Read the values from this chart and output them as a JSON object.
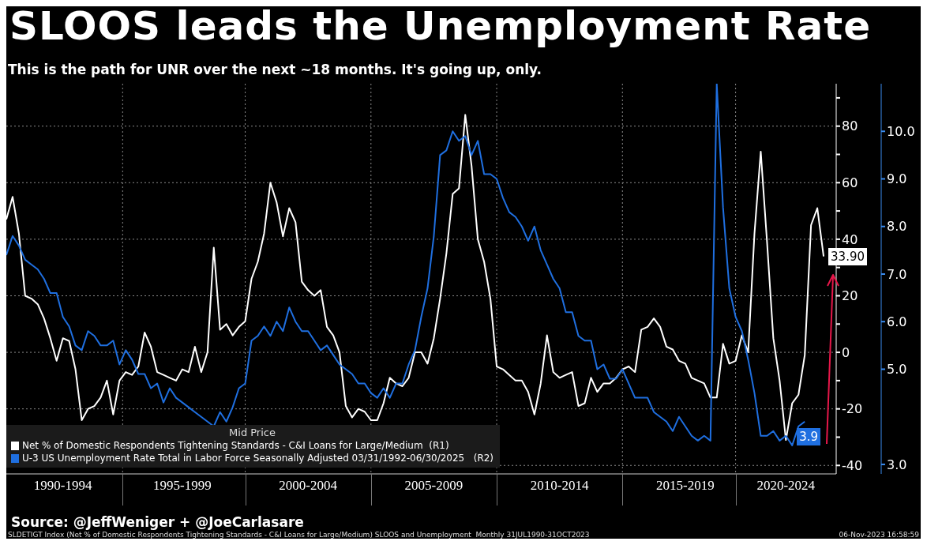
{
  "chart_data": {
    "type": "line",
    "title": "SLOOS leads the Unemployment Rate",
    "subtitle": "This is the path for UNR over the next ~18 months. It's going up, only.",
    "legend_title": "Mid Price",
    "legend": "bottom left",
    "grid": true,
    "categories": [
      null,
      null,
      null,
      null,
      null,
      null,
      null,
      null,
      null,
      "1990-1994",
      null,
      null,
      null,
      null,
      null,
      null,
      null,
      null,
      null,
      null,
      null,
      null,
      null,
      null,
      null,
      null,
      null,
      null,
      "1995-1999",
      null,
      null,
      null,
      null,
      null,
      null,
      null,
      null,
      null,
      null,
      null,
      null,
      null,
      null,
      null,
      null,
      null,
      null,
      null,
      "2000-2004",
      null,
      null,
      null,
      null,
      null,
      null,
      null,
      null,
      null,
      null,
      null,
      null,
      null,
      null,
      null,
      null,
      null,
      null,
      null,
      "2005-2009",
      null,
      null,
      null,
      null,
      null,
      null,
      null,
      null,
      null,
      null,
      null,
      null,
      null,
      null,
      null,
      null,
      null,
      null,
      null,
      "2010-2014",
      null,
      null,
      null,
      null,
      null,
      null,
      null,
      null,
      null,
      null,
      null,
      null,
      null,
      null,
      null,
      null,
      null,
      null,
      null,
      "2015-2019",
      null,
      null,
      null,
      null,
      null,
      null,
      null,
      null,
      null,
      null,
      null,
      null,
      null,
      null,
      null,
      "2020-2024",
      null,
      null,
      null,
      null,
      null,
      null,
      null,
      null
    ],
    "ylim": [
      -43,
      95
    ],
    "yticks": [
      -40,
      {
        "value": -30,
        "label": null
      },
      -20,
      {
        "value": -10,
        "label": null
      },
      0,
      {
        "value": 10,
        "label": null
      },
      20,
      {
        "value": 30,
        "label": null
      },
      40,
      {
        "value": 50,
        "label": null
      },
      60,
      {
        "value": 70,
        "label": null
      },
      80,
      {
        "value": 90,
        "label": null
      }
    ],
    "y2lim": [
      2.8,
      11.0
    ],
    "y2ticks": [
      {
        "value": 3,
        "label": "3.0"
      },
      {
        "value": 5,
        "label": "5.0"
      },
      {
        "value": 6,
        "label": "6.0"
      },
      {
        "value": 7,
        "label": "7.0"
      },
      {
        "value": 8,
        "label": "8.0"
      },
      {
        "value": 9,
        "label": "9.0"
      },
      {
        "value": 10,
        "label": "10.0"
      }
    ],
    "series": [
      {
        "name": "Net % of Domestic Respondents Tightening Standards - C&I Loans for Large/Medium  (R1)",
        "color": "#ffffff",
        "values": [
          47,
          55,
          42,
          20,
          19,
          17,
          12,
          5,
          -3,
          5,
          4,
          -6,
          -24,
          -20,
          -19,
          -16,
          -10,
          -22,
          -10,
          -7,
          -8,
          -5,
          7,
          2,
          -7,
          -8,
          -9,
          -10,
          -6,
          -7,
          2,
          -7,
          0,
          37,
          8,
          10,
          6,
          9,
          11,
          26,
          32,
          42,
          60,
          53,
          41,
          51,
          46,
          25,
          22,
          20,
          22,
          9,
          6,
          0,
          -19,
          -23,
          -20,
          -21,
          -24,
          -24,
          -18,
          -9,
          -11,
          -12,
          -9,
          0,
          0,
          -4,
          5,
          19,
          35,
          56,
          58,
          84,
          66,
          40,
          32,
          19,
          -5,
          -6,
          -8,
          -10,
          -10,
          -14,
          -22,
          -11,
          6,
          -7,
          -9,
          -8,
          -7,
          -19,
          -18,
          -9,
          -14,
          -11,
          -11,
          -9,
          -6,
          -5,
          -7,
          8,
          9,
          12,
          9,
          2,
          1,
          -3,
          -4,
          -9,
          -10,
          -11,
          -16,
          -16,
          3,
          -4,
          -3,
          6,
          0,
          42,
          71,
          39,
          5,
          -10,
          -31,
          -18,
          -15,
          -1,
          45,
          51,
          33.9,
          null,
          null
        ],
        "value_labels": [
          null,
          null,
          null,
          null,
          null,
          null,
          null,
          null,
          null,
          null,
          null,
          null,
          null,
          null,
          null,
          null,
          null,
          null,
          null,
          null,
          null,
          null,
          null,
          null,
          null,
          null,
          null,
          null,
          null,
          null,
          null,
          null,
          null,
          null,
          null,
          null,
          null,
          null,
          null,
          null,
          null,
          null,
          null,
          null,
          null,
          null,
          null,
          null,
          null,
          null,
          null,
          null,
          null,
          null,
          null,
          null,
          null,
          null,
          null,
          null,
          null,
          null,
          null,
          null,
          null,
          null,
          null,
          null,
          null,
          null,
          null,
          null,
          null,
          null,
          null,
          null,
          null,
          null,
          null,
          null,
          null,
          null,
          null,
          null,
          null,
          null,
          null,
          null,
          null,
          null,
          null,
          null,
          null,
          null,
          null,
          null,
          null,
          null,
          null,
          null,
          null,
          null,
          null,
          null,
          null,
          null,
          null,
          null,
          null,
          null,
          null,
          null,
          null,
          null,
          null,
          null,
          null,
          null,
          null,
          null,
          null,
          null,
          null,
          null,
          null,
          null,
          null,
          null,
          null,
          null,
          "33.90",
          null,
          null
        ]
      },
      {
        "name": "U-3 US Unemployment Rate Total in Labor Force Seasonally Adjusted 03/31/1992-06/30/2025   (R2)",
        "color": "#1f6fe0",
        "axis": "y2",
        "values": [
          7.4,
          7.8,
          7.6,
          7.3,
          7.2,
          7.1,
          6.9,
          6.6,
          6.6,
          6.1,
          5.9,
          5.5,
          5.4,
          5.8,
          5.7,
          5.5,
          5.5,
          5.6,
          5.1,
          5.4,
          5.2,
          4.9,
          4.9,
          4.6,
          4.7,
          4.3,
          4.6,
          4.4,
          4.3,
          4.2,
          4.1,
          4.0,
          3.9,
          3.8,
          4.1,
          3.9,
          4.2,
          4.6,
          4.7,
          5.6,
          5.7,
          5.9,
          5.7,
          6.0,
          5.8,
          6.3,
          6.0,
          5.8,
          5.8,
          5.6,
          5.4,
          5.5,
          5.3,
          5.1,
          5.0,
          4.9,
          4.7,
          4.7,
          4.5,
          4.4,
          4.6,
          4.4,
          4.7,
          4.7,
          5.1,
          5.4,
          6.1,
          6.7,
          7.8,
          9.5,
          9.6,
          10.0,
          9.8,
          9.9,
          9.5,
          9.8,
          9.1,
          9.1,
          9.0,
          8.6,
          8.3,
          8.2,
          8.0,
          7.7,
          8.0,
          7.5,
          7.2,
          6.9,
          6.7,
          6.2,
          6.2,
          5.7,
          5.6,
          5.6,
          5.0,
          5.1,
          4.8,
          4.8,
          5.0,
          4.7,
          4.4,
          4.4,
          4.4,
          4.1,
          4.0,
          3.9,
          3.7,
          4.0,
          3.8,
          3.6,
          3.5,
          3.6,
          3.5,
          11.0,
          8.4,
          6.7,
          6.1,
          5.8,
          5.2,
          4.5,
          3.6,
          3.6,
          3.7,
          3.5,
          3.6,
          3.4,
          3.8,
          3.9,
          null,
          null,
          null,
          null,
          null
        ],
        "value_labels": [
          null,
          null,
          null,
          null,
          null,
          null,
          null,
          null,
          null,
          null,
          null,
          null,
          null,
          null,
          null,
          null,
          null,
          null,
          null,
          null,
          null,
          null,
          null,
          null,
          null,
          null,
          null,
          null,
          null,
          null,
          null,
          null,
          null,
          null,
          null,
          null,
          null,
          null,
          null,
          null,
          null,
          null,
          null,
          null,
          null,
          null,
          null,
          null,
          null,
          null,
          null,
          null,
          null,
          null,
          null,
          null,
          null,
          null,
          null,
          null,
          null,
          null,
          null,
          null,
          null,
          null,
          null,
          null,
          null,
          null,
          null,
          null,
          null,
          null,
          null,
          null,
          null,
          null,
          null,
          null,
          null,
          null,
          null,
          null,
          null,
          null,
          null,
          null,
          null,
          null,
          null,
          null,
          null,
          null,
          null,
          null,
          null,
          null,
          null,
          null,
          null,
          null,
          null,
          null,
          null,
          null,
          null,
          null,
          null,
          null,
          null,
          null,
          null,
          null,
          null,
          null,
          null,
          null,
          null,
          null,
          null,
          null,
          null,
          null,
          null,
          null,
          null,
          "3.9",
          null,
          null,
          null,
          null,
          null
        ]
      }
    ],
    "annotations": [
      "Source: @JeffWeniger + @JoeCarlasare",
      "SLDETIGT Index (Net % of Domestic Respondents Tightening Standards - C&I Loans for Large/Medium) SLOOS and Unemployment  Monthly 31JUL1990-31OCT2023",
      "06-Nov-2023 16:58:59"
    ]
  }
}
